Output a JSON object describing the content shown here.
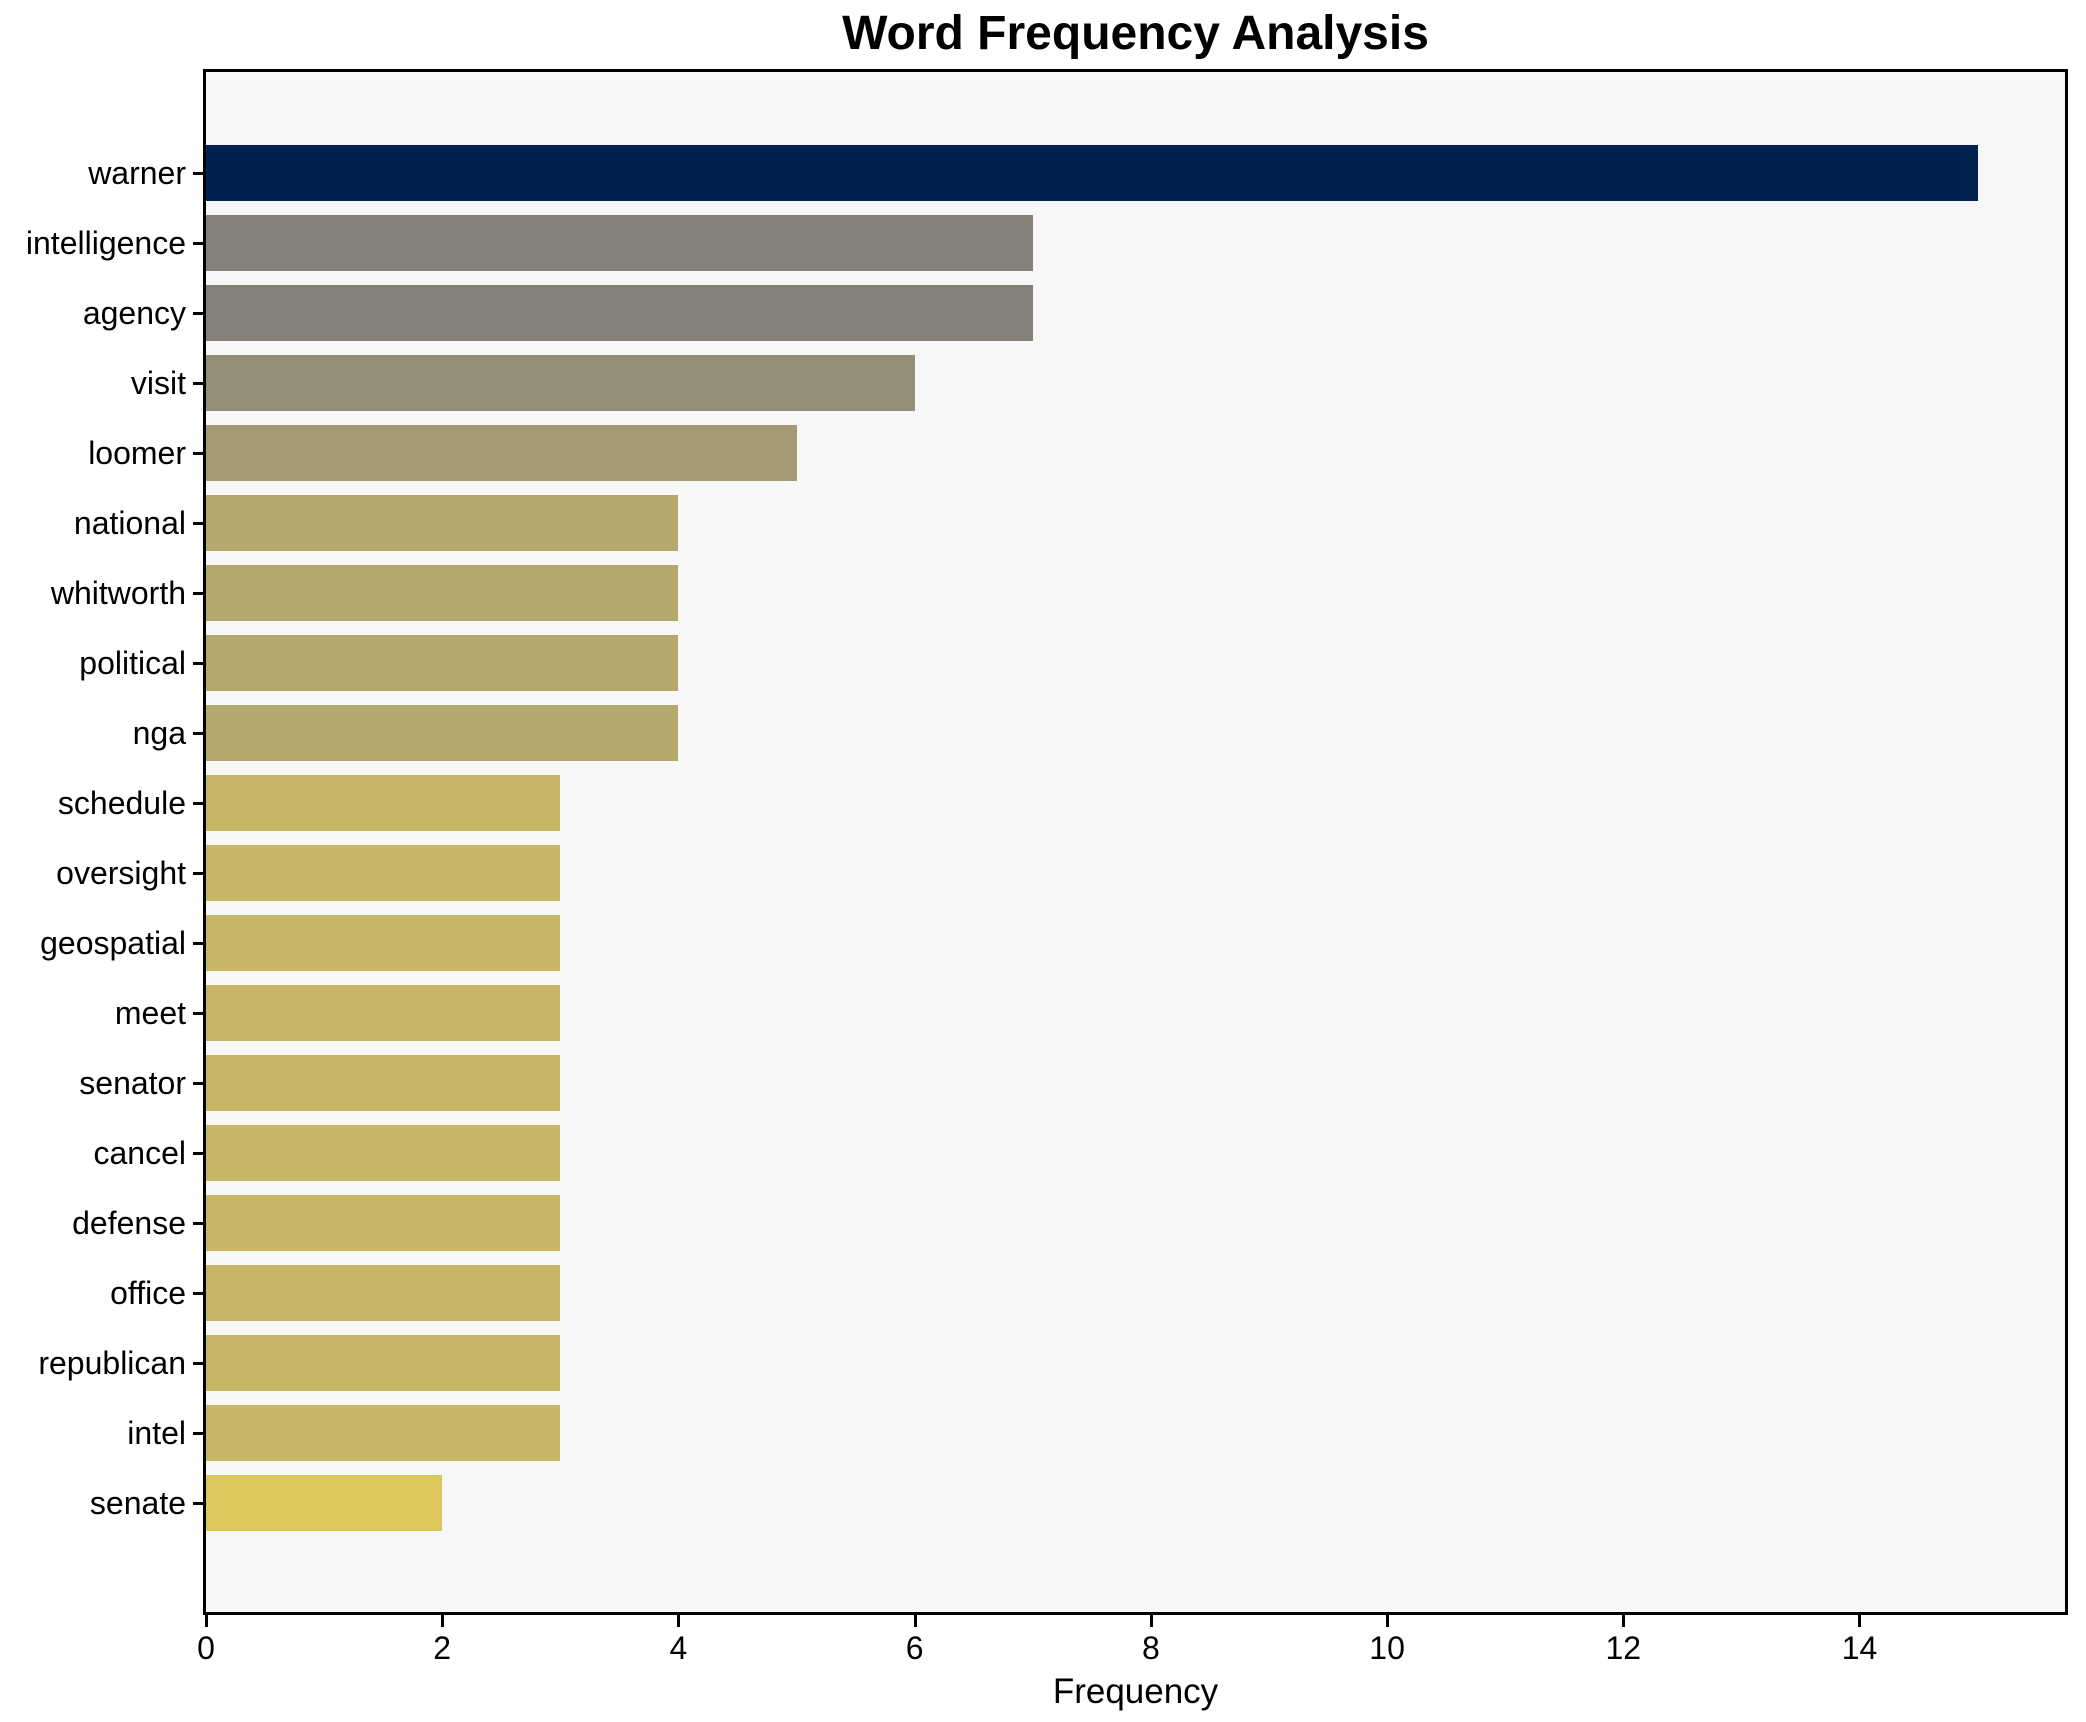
{
  "chart_title": "Word Frequency Analysis",
  "chart_data": {
    "type": "bar",
    "orientation": "horizontal",
    "title": "Word Frequency Analysis",
    "xlabel": "Frequency",
    "ylabel": "",
    "categories": [
      "warner",
      "intelligence",
      "agency",
      "visit",
      "loomer",
      "national",
      "whitworth",
      "political",
      "nga",
      "schedule",
      "oversight",
      "geospatial",
      "meet",
      "senator",
      "cancel",
      "defense",
      "office",
      "republican",
      "intel",
      "senate"
    ],
    "values": [
      15,
      7,
      7,
      6,
      5,
      4,
      4,
      4,
      4,
      3,
      3,
      3,
      3,
      3,
      3,
      3,
      3,
      3,
      3,
      2
    ],
    "bar_colors": [
      "#00224e",
      "#84817b",
      "#84817b",
      "#948e78",
      "#a49b74",
      "#b4a96c",
      "#b4a96c",
      "#b4a96c",
      "#b4a96c",
      "#c7b665",
      "#c7b665",
      "#c7b665",
      "#c7b665",
      "#c7b665",
      "#c7b665",
      "#c7b665",
      "#c7b665",
      "#c7b665",
      "#c7b665",
      "#dcc75a"
    ],
    "x_ticks": [
      0,
      2,
      4,
      6,
      8,
      10,
      12,
      14
    ],
    "xlim": [
      0,
      15.74
    ],
    "grid": false,
    "legend": null,
    "plot_background": "#f7f7f8",
    "frame_color": "#000000",
    "colormap": "cividis-by-value"
  }
}
